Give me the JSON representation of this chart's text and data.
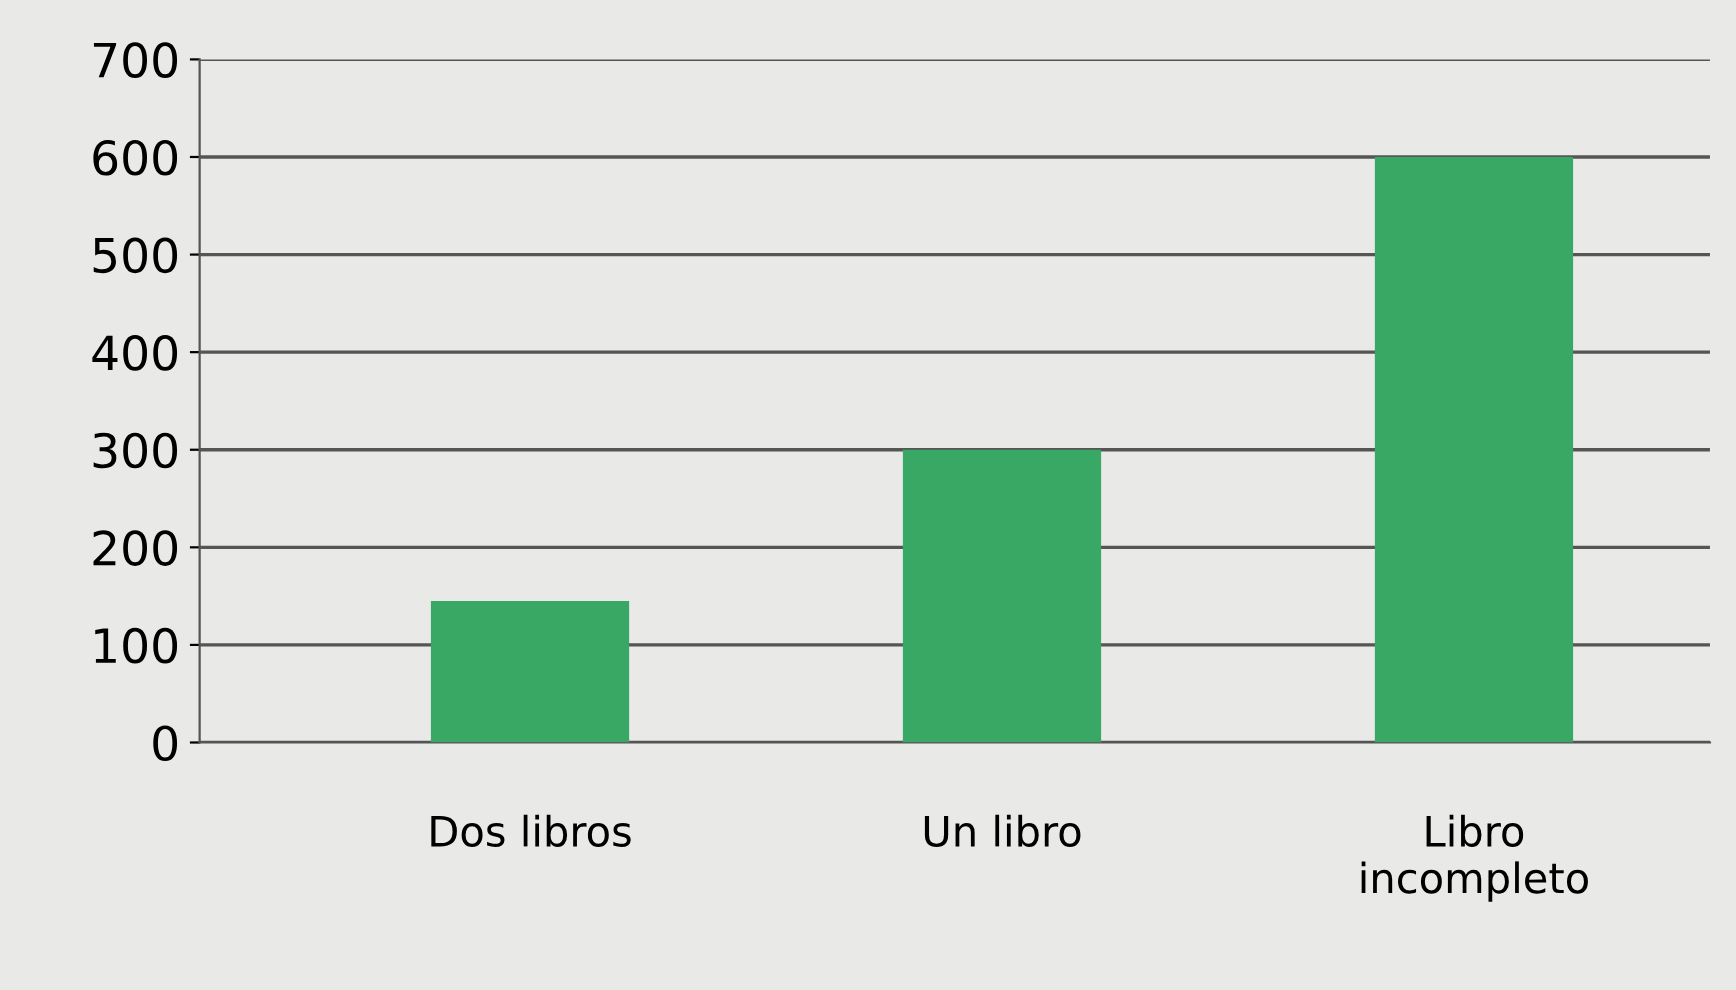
{
  "chart_data": {
    "type": "bar",
    "categories": [
      "Dos libros",
      "Un libro",
      "Libro\nincompleto"
    ],
    "values": [
      145,
      300,
      600
    ],
    "color": "#3aa865",
    "ylim": [
      0,
      700
    ],
    "yticks": [
      0,
      100,
      200,
      300,
      400,
      500,
      600,
      700
    ],
    "grid": "y",
    "legend": false
  }
}
